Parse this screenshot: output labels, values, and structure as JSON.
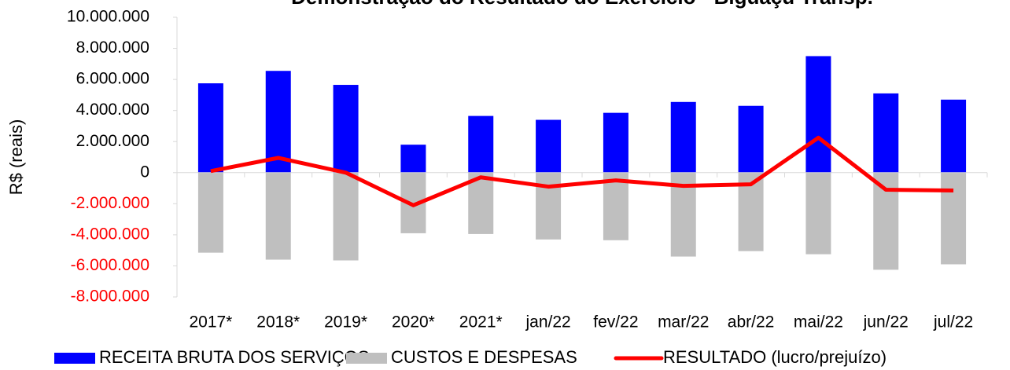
{
  "chart_data": {
    "type": "bar",
    "title": "Demonstração do Resultado do Exercício - Biguaçu Transp.",
    "y_label": "R$ (reais)",
    "categories": [
      "2017*",
      "2018*",
      "2019*",
      "2020*",
      "2021*",
      "jan/22",
      "fev/22",
      "mar/22",
      "abr/22",
      "mai/22",
      "jun/22",
      "jul/22"
    ],
    "series": [
      {
        "name": "RECEITA BRUTA DOS SERVIÇOS",
        "type": "bar",
        "color": "#0000ff",
        "values": [
          5750000,
          6550000,
          5650000,
          1800000,
          3650000,
          3400000,
          3850000,
          4550000,
          4300000,
          7500000,
          5100000,
          4700000
        ]
      },
      {
        "name": "CUSTOS E DESPESAS",
        "type": "bar",
        "color": "#bfbfbf",
        "values": [
          -5150000,
          -5600000,
          -5650000,
          -3900000,
          -3950000,
          -4300000,
          -4350000,
          -5400000,
          -5050000,
          -5250000,
          -6250000,
          -5900000
        ]
      },
      {
        "name": "RESULTADO (lucro/prejuízo)",
        "type": "line",
        "color": "#ff0000",
        "values": [
          100000,
          950000,
          0,
          -2100000,
          -300000,
          -900000,
          -500000,
          -850000,
          -750000,
          2250000,
          -1100000,
          -1150000
        ]
      }
    ],
    "ylim": [
      -8000000,
      10000000
    ],
    "yticks": [
      {
        "value": -8000000,
        "label": "-8.000.000"
      },
      {
        "value": -6000000,
        "label": "-6.000.000"
      },
      {
        "value": -4000000,
        "label": "-4.000.000"
      },
      {
        "value": -2000000,
        "label": "-2.000.000"
      },
      0,
      {
        "value": 2000000,
        "label": "2.000.000"
      },
      {
        "value": 4000000,
        "label": "4.000.000"
      },
      {
        "value": 6000000,
        "label": "6.000.000"
      },
      {
        "value": 8000000,
        "label": "8.000.000"
      },
      {
        "value": 10000000,
        "label": "10.000.000"
      }
    ],
    "negative_tick_color": "#ff0000",
    "legend": "bottom"
  }
}
